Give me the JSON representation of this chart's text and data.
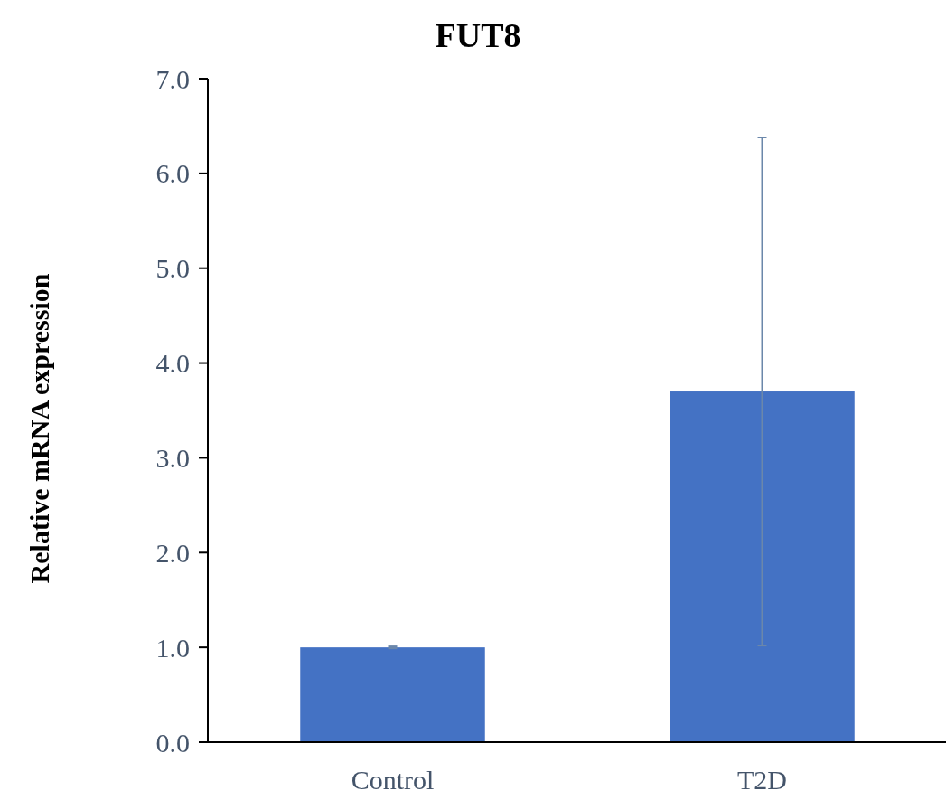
{
  "chart_data": {
    "type": "bar",
    "title": "FUT8",
    "ylabel": "Relative mRNA expression",
    "categories": [
      "Control",
      "T2D"
    ],
    "values": [
      1.0,
      3.7
    ],
    "errors": [
      0.01,
      2.68
    ],
    "color": "#4472c4",
    "ylim": [
      0,
      7
    ],
    "yticks": [
      {
        "value": 0,
        "label": "0.0"
      },
      {
        "value": 1,
        "label": "1.0"
      },
      {
        "value": 2,
        "label": "2.0"
      },
      {
        "value": 3,
        "label": "3.0"
      },
      {
        "value": 4,
        "label": "4.0"
      },
      {
        "value": 5,
        "label": "5.0"
      },
      {
        "value": 6,
        "label": "6.0"
      },
      {
        "value": 7,
        "label": "7.0"
      }
    ],
    "grid": false
  }
}
